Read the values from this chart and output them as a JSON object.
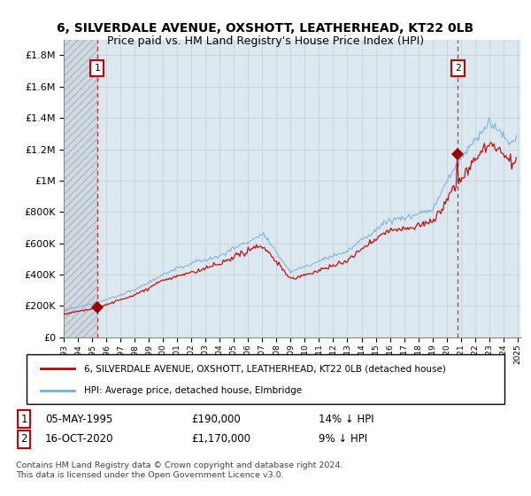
{
  "title": "6, SILVERDALE AVENUE, OXSHOTT, LEATHERHEAD, KT22 0LB",
  "subtitle": "Price paid vs. HM Land Registry's House Price Index (HPI)",
  "ylabel_ticks": [
    "£0",
    "£200K",
    "£400K",
    "£600K",
    "£800K",
    "£1M",
    "£1.2M",
    "£1.4M",
    "£1.6M",
    "£1.8M"
  ],
  "ytick_values": [
    0,
    200000,
    400000,
    600000,
    800000,
    1000000,
    1200000,
    1400000,
    1600000,
    1800000
  ],
  "ylim": [
    0,
    1900000
  ],
  "x_start_year": 1993,
  "x_end_year": 2025,
  "sale1_year": 1995.35,
  "sale1_price": 190000,
  "sale1_label": "1",
  "sale2_year": 2020.79,
  "sale2_price": 1170000,
  "sale2_label": "2",
  "hpi_color": "#7ab0d4",
  "price_color": "#cc0000",
  "marker_color": "#990000",
  "vline_color": "#cc0000",
  "hatch_color": "#d0d8e0",
  "grid_color": "#c8d0d8",
  "bg_color": "#dce8f0",
  "legend_line1": "6, SILVERDALE AVENUE, OXSHOTT, LEATHERHEAD, KT22 0LB (detached house)",
  "legend_line2": "HPI: Average price, detached house, Elmbridge",
  "footnote": "Contains HM Land Registry data © Crown copyright and database right 2024.\nThis data is licensed under the Open Government Licence v3.0."
}
